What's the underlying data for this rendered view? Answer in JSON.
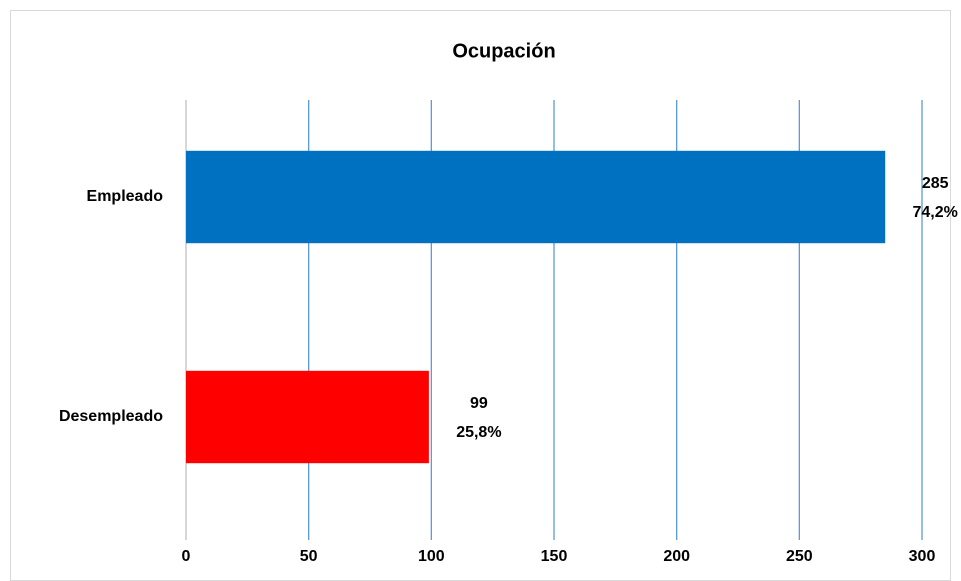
{
  "chart_data": {
    "type": "barh",
    "title": "Ocupación",
    "categories": [
      "Empleado",
      "Desempleado"
    ],
    "values": [
      285,
      99
    ],
    "share_labels": [
      "74,2%",
      "25,8%"
    ],
    "colors": [
      "#0070c0",
      "#ff0000"
    ],
    "xlim": [
      0,
      300
    ],
    "xticks": [
      0,
      50,
      100,
      150,
      200,
      250,
      300
    ],
    "grid": true,
    "grid_color": "#5b9bd5"
  }
}
